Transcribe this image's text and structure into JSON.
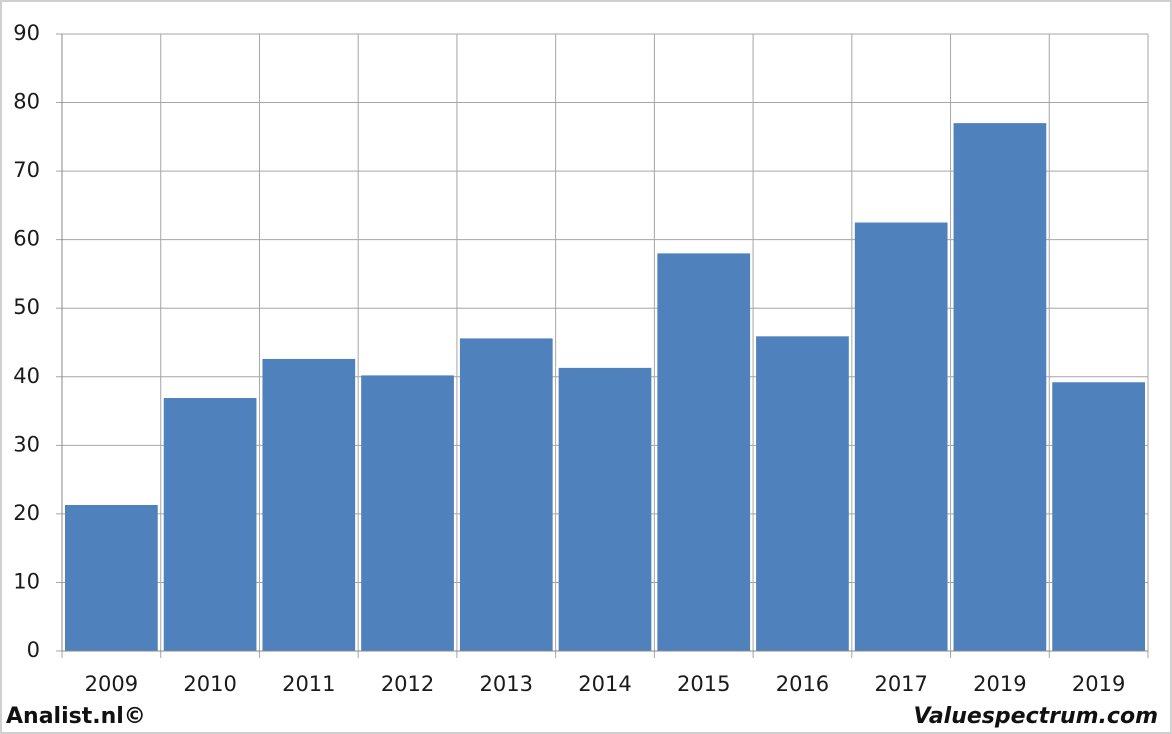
{
  "chart_data": {
    "type": "bar",
    "categories": [
      "2009",
      "2010",
      "2011",
      "2012",
      "2013",
      "2014",
      "2015",
      "2016",
      "2017",
      "2019",
      "2019"
    ],
    "values": [
      21.3,
      36.9,
      42.6,
      40.2,
      45.6,
      41.3,
      58.0,
      45.9,
      62.5,
      77.0,
      39.2
    ],
    "color": "#4f81bd",
    "ylim": [
      0,
      90
    ],
    "yticks": [
      0,
      10,
      20,
      30,
      40,
      50,
      60,
      70,
      80,
      90
    ],
    "grid": true,
    "annotations": [
      "Analist.nl©",
      "Valuespectrum.com"
    ]
  }
}
